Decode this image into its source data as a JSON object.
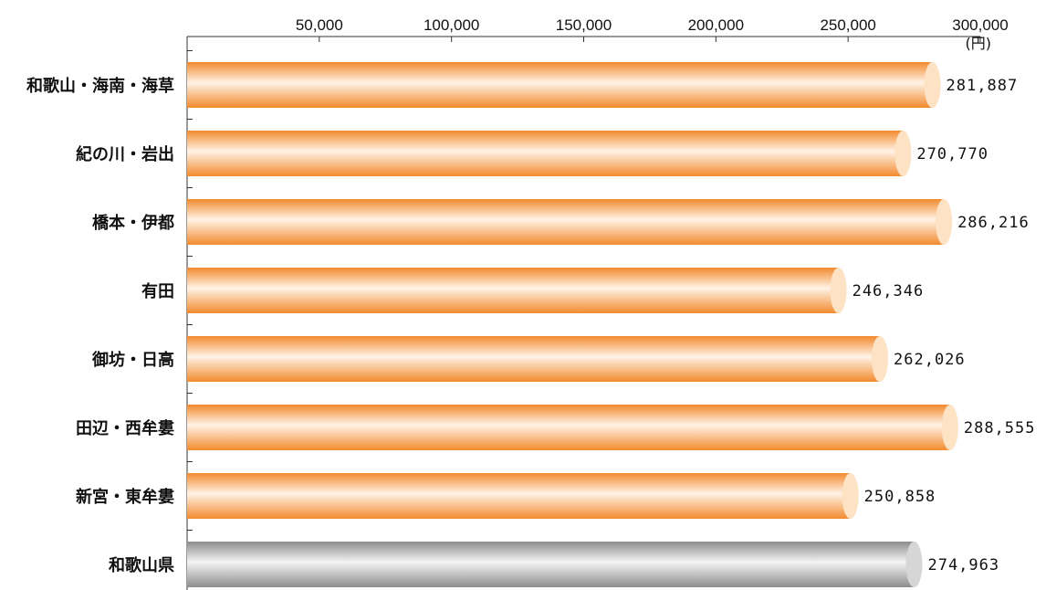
{
  "chart_data": {
    "type": "bar",
    "orientation": "horizontal",
    "unit": "(円)",
    "categories": [
      "和歌山・海南・海草",
      "紀の川・岩出",
      "橋本・伊都",
      "有田",
      "御坊・日高",
      "田辺・西牟婁",
      "新宮・東牟婁",
      "和歌山県"
    ],
    "values": [
      281887,
      270770,
      286216,
      246346,
      262026,
      288555,
      250858,
      274963
    ],
    "value_labels": [
      "281,887",
      "270,770",
      "286,216",
      "246,346",
      "262,026",
      "288,555",
      "250,858",
      "274,963"
    ],
    "xlim": [
      0,
      300000
    ],
    "xticks": [
      50000,
      100000,
      150000,
      200000,
      250000,
      300000
    ],
    "xtick_labels": [
      "50,000",
      "100,000",
      "150,000",
      "200,000",
      "250,000",
      "300,000"
    ],
    "axis_position": "top",
    "grid": false,
    "colors": {
      "region_bar": "#f28a2e",
      "region_bar_light": "#fff3e6",
      "region_cap": "#fde2c4",
      "total_bar": "#8c8c8c",
      "total_bar_light": "#f4f4f4",
      "total_cap": "#d6d6d6"
    },
    "highlight_category": "和歌山県"
  }
}
